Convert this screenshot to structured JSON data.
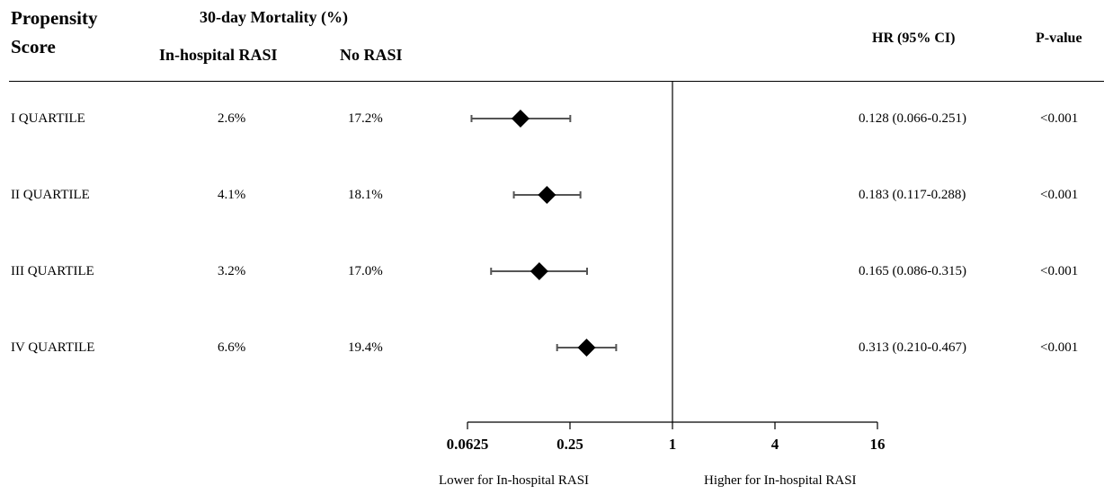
{
  "headers": {
    "propensity_line1": "Propensity",
    "propensity_line2": "Score",
    "mortality": "30-day Mortality (%)",
    "rasi": "In-hospital RASI",
    "no_rasi": "No RASI",
    "hr": "HR (95% CI)",
    "pvalue": "P-value"
  },
  "rows": [
    {
      "label": "I QUARTILE",
      "rasi": "2.6%",
      "no_rasi": "17.2%",
      "hr_text": "0.128 (0.066-0.251)",
      "p": "<0.001"
    },
    {
      "label": "II QUARTILE",
      "rasi": "4.1%",
      "no_rasi": "18.1%",
      "hr_text": "0.183 (0.117-0.288)",
      "p": "<0.001"
    },
    {
      "label": "III QUARTILE",
      "rasi": "3.2%",
      "no_rasi": "17.0%",
      "hr_text": "0.165 (0.086-0.315)",
      "p": "<0.001"
    },
    {
      "label": "IV QUARTILE",
      "rasi": "6.6%",
      "no_rasi": "19.4%",
      "hr_text": "0.313 (0.210-0.467)",
      "p": "<0.001"
    }
  ],
  "chart_data": {
    "type": "forest",
    "scale": "log2",
    "xlim": [
      0.0625,
      16
    ],
    "reference": 1,
    "ticks": [
      0.0625,
      0.25,
      1,
      4,
      16
    ],
    "tick_labels": [
      "0.0625",
      "0.25",
      "1",
      "4",
      "16"
    ],
    "categories": [
      "I QUARTILE",
      "II QUARTILE",
      "III QUARTILE",
      "IV QUARTILE"
    ],
    "hr": [
      0.128,
      0.183,
      0.165,
      0.313
    ],
    "ci_low": [
      0.066,
      0.117,
      0.086,
      0.21
    ],
    "ci_high": [
      0.251,
      0.288,
      0.315,
      0.467
    ],
    "lower_label": "Lower for In-hospital RASI",
    "higher_label": "Higher for In-hospital RASI",
    "marker_color": "#000000",
    "ci_color": "#555555"
  }
}
